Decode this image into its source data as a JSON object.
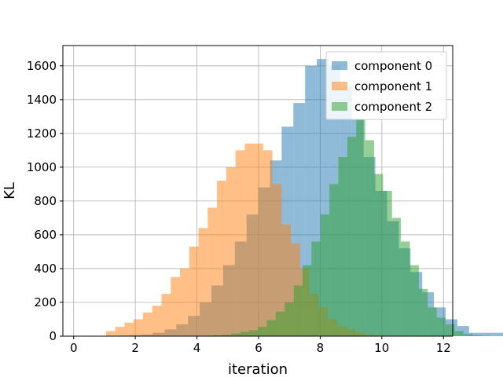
{
  "chart_data": {
    "type": "histogram",
    "title": "",
    "xlabel": "iteration",
    "ylabel": "KL",
    "xlim": [
      -0.35,
      12.3
    ],
    "ylim": [
      0,
      1720
    ],
    "xticks": [
      0,
      2,
      4,
      6,
      8,
      10,
      12
    ],
    "yticks": [
      0,
      200,
      400,
      600,
      800,
      1000,
      1200,
      1400,
      1600
    ],
    "grid": true,
    "legend_position": "upper right",
    "bar_opacity": 0.5,
    "series": [
      {
        "name": "component 0",
        "color": "#1f77b4",
        "bin_start": 1.05,
        "bin_width": 0.38,
        "counts": [
          2,
          4,
          6,
          10,
          20,
          40,
          70,
          120,
          200,
          300,
          420,
          560,
          720,
          880,
          1040,
          1240,
          1380,
          1600,
          1640,
          1600,
          1480,
          1280,
          1060,
          860,
          680,
          520,
          380,
          260,
          170,
          100,
          60,
          20,
          20,
          20,
          20,
          2,
          0,
          0,
          0,
          0
        ]
      },
      {
        "name": "component 1",
        "color": "#ff7f0e",
        "bin_start": 1.05,
        "bin_width": 0.3,
        "counts": [
          30,
          55,
          80,
          100,
          140,
          180,
          250,
          350,
          400,
          530,
          640,
          760,
          920,
          1000,
          1100,
          1140,
          1140,
          1100,
          900,
          660,
          550,
          400,
          250,
          170,
          100,
          60,
          40,
          20,
          10,
          5,
          2,
          0,
          0,
          0,
          0,
          0
        ]
      },
      {
        "name": "component 2",
        "color": "#2ca02c",
        "bin_start": 1.05,
        "bin_width": 0.29,
        "counts": [
          0,
          0,
          0,
          0,
          0,
          0,
          0,
          0,
          0,
          0,
          0,
          2,
          5,
          8,
          15,
          25,
          35,
          55,
          95,
          145,
          200,
          300,
          420,
          560,
          720,
          900,
          1060,
          1180,
          1280,
          1160,
          960,
          860,
          700,
          560,
          420,
          280,
          170,
          110,
          70,
          30,
          12,
          5,
          2,
          0
        ]
      }
    ]
  }
}
